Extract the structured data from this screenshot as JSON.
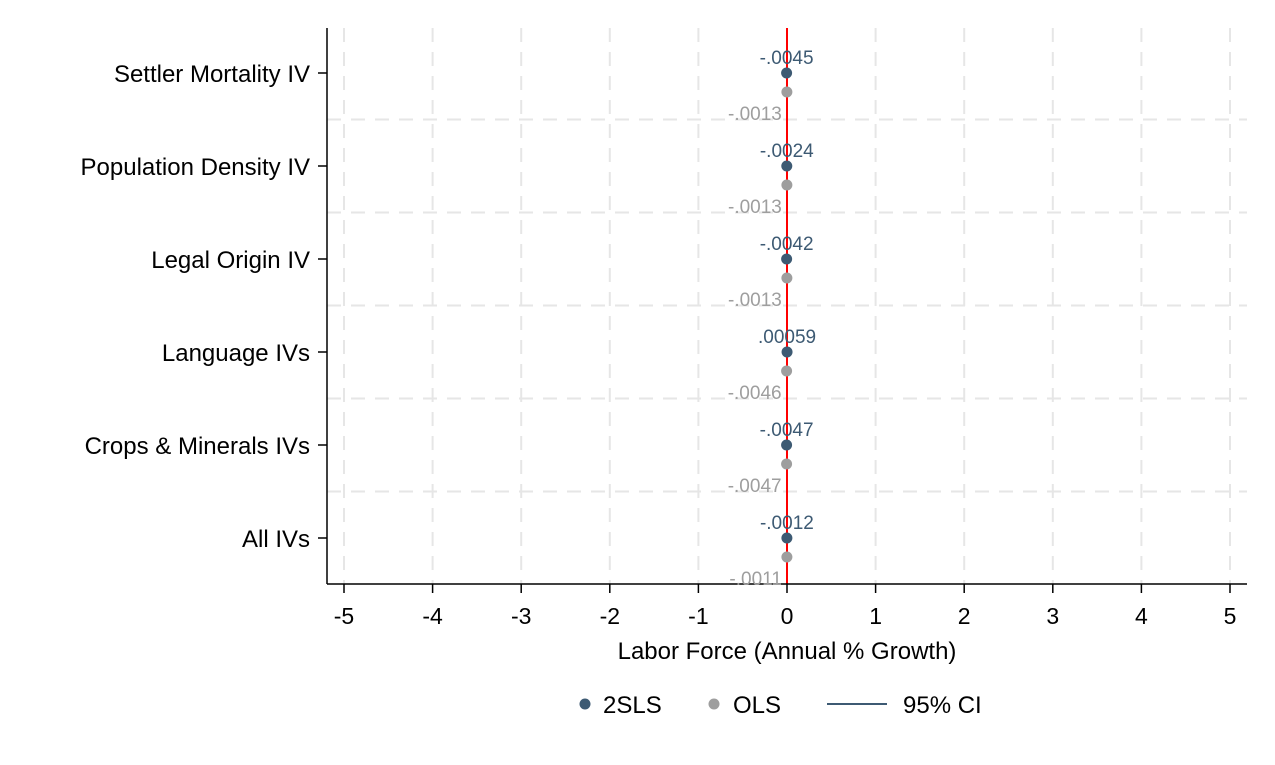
{
  "chart_data": {
    "type": "scatter",
    "xlabel": "Labor Force (Annual % Growth)",
    "xlim": [
      -5.2,
      5.2
    ],
    "xticks": [
      "-5",
      "-4",
      "-3",
      "-2",
      "-1",
      "0",
      "1",
      "2",
      "3",
      "4",
      "5"
    ],
    "xtick_values": [
      -5,
      -4,
      -3,
      -2,
      -1,
      0,
      1,
      2,
      3,
      4,
      5
    ],
    "reference_line": 0,
    "grid": true,
    "legend_position": "bottom",
    "categories": [
      "Settler Mortality IV",
      "Population Density IV",
      "Legal Origin IV",
      "Language IVs",
      "Crops & Minerals IVs",
      "All IVs"
    ],
    "series": [
      {
        "name": "2SLS",
        "color": "#3d5a73",
        "values": [
          -0.0045,
          -0.0024,
          -0.0042,
          0.00059,
          -0.0047,
          -0.0012
        ],
        "labels": [
          "-.0045",
          "-.0024",
          "-.0042",
          ".00059",
          "-.0047",
          "-.0012"
        ]
      },
      {
        "name": "OLS",
        "color": "#9e9e9e",
        "values": [
          -0.0013,
          -0.0013,
          -0.0013,
          -0.0046,
          -0.0047,
          -0.0011
        ],
        "labels": [
          "-.0013",
          "-.0013",
          "-.0013",
          "-.0046",
          "-.0047",
          "-.0011"
        ]
      }
    ],
    "legend": [
      {
        "label": "2SLS",
        "kind": "marker",
        "color": "#3d5a73"
      },
      {
        "label": "OLS",
        "kind": "marker",
        "color": "#9e9e9e"
      },
      {
        "label": "95% CI",
        "kind": "line",
        "color": "#3d5a73"
      }
    ],
    "colors": {
      "reference_line": "#ff0000",
      "grid": "#e6e6e6",
      "axis": "#000000"
    }
  }
}
